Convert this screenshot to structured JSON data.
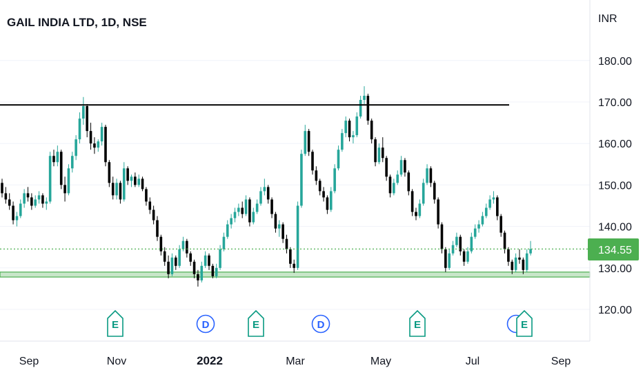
{
  "chart_data": {
    "type": "candlestick",
    "title": "GAIL INDIA LTD, 1D, NSE",
    "currency": "INR",
    "y_ticks": [
      "180.00",
      "170.00",
      "160.00",
      "150.00",
      "140.00",
      "130.00",
      "120.00"
    ],
    "y_tick_values": [
      180,
      170,
      160,
      150,
      140,
      130,
      120
    ],
    "ylim": [
      113.9,
      189.3
    ],
    "x_ticks": [
      {
        "label": "Sep",
        "bold": false
      },
      {
        "label": "Nov",
        "bold": false
      },
      {
        "label": "2022",
        "bold": true
      },
      {
        "label": "Mar",
        "bold": false
      },
      {
        "label": "May",
        "bold": false
      },
      {
        "label": "Jul",
        "bold": false
      },
      {
        "label": "Sep",
        "bold": false
      }
    ],
    "last_price": 134.55,
    "last_price_label": "134.55",
    "colors": {
      "up": "#26a69a",
      "down": "#000000",
      "accent": "#4caf50",
      "dividend": "#2962ff",
      "earnings": "#089981"
    },
    "resistance_level": 169.3,
    "support_band": [
      127.8,
      129.0
    ],
    "events": [
      {
        "type": "E",
        "label": "E"
      },
      {
        "type": "D",
        "label": "D"
      },
      {
        "type": "E",
        "label": "E"
      },
      {
        "type": "D",
        "label": "D"
      },
      {
        "type": "E",
        "label": "E"
      },
      {
        "type": "D",
        "label": ""
      },
      {
        "type": "E",
        "label": "E"
      }
    ],
    "candles": [
      [
        150.5,
        151.5,
        147.0,
        148.0
      ],
      [
        148.0,
        149.5,
        145.5,
        146.5
      ],
      [
        146.5,
        148.0,
        144.0,
        145.0
      ],
      [
        145.0,
        146.0,
        140.5,
        141.5
      ],
      [
        141.5,
        143.5,
        140.0,
        142.5
      ],
      [
        142.5,
        146.5,
        142.0,
        145.5
      ],
      [
        145.5,
        149.0,
        144.5,
        148.0
      ],
      [
        148.0,
        149.5,
        146.0,
        147.0
      ],
      [
        147.0,
        148.0,
        144.0,
        145.0
      ],
      [
        145.0,
        147.5,
        144.5,
        146.5
      ],
      [
        146.5,
        148.5,
        145.5,
        147.5
      ],
      [
        147.5,
        148.0,
        144.5,
        145.5
      ],
      [
        145.5,
        147.0,
        144.0,
        146.0
      ],
      [
        146.0,
        158.0,
        145.5,
        157.0
      ],
      [
        157.0,
        158.5,
        154.5,
        155.5
      ],
      [
        155.5,
        159.5,
        154.5,
        158.0
      ],
      [
        158.0,
        158.5,
        149.0,
        150.0
      ],
      [
        150.0,
        152.0,
        146.0,
        148.0
      ],
      [
        148.0,
        155.0,
        147.5,
        154.0
      ],
      [
        154.0,
        158.0,
        153.0,
        157.0
      ],
      [
        157.0,
        162.0,
        156.0,
        161.0
      ],
      [
        161.0,
        167.5,
        160.0,
        166.0
      ],
      [
        166.0,
        171.2,
        164.5,
        169.0
      ],
      [
        169.0,
        169.5,
        161.5,
        163.0
      ],
      [
        163.0,
        165.0,
        158.5,
        160.0
      ],
      [
        160.0,
        161.5,
        157.5,
        159.0
      ],
      [
        159.0,
        161.0,
        158.0,
        160.5
      ],
      [
        160.5,
        165.0,
        159.5,
        164.0
      ],
      [
        164.0,
        164.5,
        154.5,
        155.5
      ],
      [
        155.5,
        156.0,
        149.5,
        150.5
      ],
      [
        150.5,
        152.0,
        146.5,
        147.5
      ],
      [
        147.5,
        151.5,
        146.5,
        150.5
      ],
      [
        150.5,
        151.0,
        145.5,
        146.5
      ],
      [
        146.5,
        155.5,
        146.0,
        154.0
      ],
      [
        154.0,
        154.5,
        150.0,
        151.0
      ],
      [
        151.0,
        152.5,
        149.5,
        152.0
      ],
      [
        152.0,
        153.0,
        149.5,
        150.0
      ],
      [
        150.0,
        152.5,
        149.5,
        151.5
      ],
      [
        151.5,
        152.0,
        148.5,
        149.0
      ],
      [
        149.0,
        149.5,
        145.0,
        146.0
      ],
      [
        146.0,
        147.0,
        143.0,
        144.0
      ],
      [
        144.0,
        145.0,
        140.5,
        141.5
      ],
      [
        141.5,
        142.5,
        136.5,
        137.5
      ],
      [
        137.5,
        138.0,
        133.0,
        134.0
      ],
      [
        134.0,
        135.0,
        130.5,
        131.5
      ],
      [
        131.5,
        133.0,
        127.5,
        128.5
      ],
      [
        128.5,
        133.5,
        128.0,
        132.5
      ],
      [
        132.5,
        133.0,
        129.5,
        130.5
      ],
      [
        130.5,
        135.5,
        130.0,
        134.5
      ],
      [
        134.5,
        137.5,
        134.0,
        136.5
      ],
      [
        136.5,
        137.0,
        132.5,
        133.5
      ],
      [
        133.5,
        134.0,
        130.5,
        131.5
      ],
      [
        131.5,
        132.0,
        127.5,
        128.5
      ],
      [
        128.5,
        129.5,
        125.5,
        127.0
      ],
      [
        127.0,
        131.5,
        126.5,
        130.5
      ],
      [
        130.5,
        134.0,
        130.0,
        133.0
      ],
      [
        133.0,
        133.5,
        129.5,
        130.5
      ],
      [
        130.5,
        131.0,
        127.5,
        128.0
      ],
      [
        128.0,
        131.0,
        127.5,
        130.0
      ],
      [
        130.0,
        135.5,
        129.5,
        134.5
      ],
      [
        134.5,
        138.5,
        134.0,
        137.5
      ],
      [
        137.5,
        141.5,
        137.0,
        140.5
      ],
      [
        140.5,
        143.0,
        139.5,
        142.0
      ],
      [
        142.0,
        144.5,
        141.0,
        143.5
      ],
      [
        143.5,
        145.5,
        142.5,
        144.5
      ],
      [
        144.5,
        146.0,
        142.0,
        143.0
      ],
      [
        143.0,
        147.5,
        142.5,
        146.5
      ],
      [
        146.5,
        147.0,
        140.0,
        141.0
      ],
      [
        141.0,
        144.5,
        140.5,
        143.5
      ],
      [
        143.5,
        146.5,
        143.0,
        145.5
      ],
      [
        145.5,
        149.5,
        145.0,
        148.5
      ],
      [
        148.5,
        151.5,
        147.5,
        149.5
      ],
      [
        149.5,
        150.0,
        145.5,
        146.5
      ],
      [
        146.5,
        147.0,
        142.0,
        143.0
      ],
      [
        143.0,
        143.5,
        138.5,
        139.5
      ],
      [
        139.5,
        141.5,
        137.5,
        140.5
      ],
      [
        140.5,
        141.0,
        136.0,
        137.0
      ],
      [
        137.0,
        138.0,
        133.5,
        134.5
      ],
      [
        134.5,
        135.0,
        130.0,
        131.0
      ],
      [
        131.0,
        132.0,
        128.8,
        130.0
      ],
      [
        130.0,
        146.0,
        129.5,
        145.0
      ],
      [
        145.0,
        158.5,
        144.5,
        157.5
      ],
      [
        157.5,
        164.5,
        157.0,
        163.0
      ],
      [
        163.0,
        163.5,
        157.0,
        158.0
      ],
      [
        158.0,
        158.5,
        152.5,
        153.5
      ],
      [
        153.5,
        154.5,
        150.0,
        151.0
      ],
      [
        151.0,
        151.5,
        147.5,
        148.5
      ],
      [
        148.5,
        149.5,
        146.0,
        147.0
      ],
      [
        147.0,
        147.5,
        143.0,
        144.0
      ],
      [
        144.0,
        149.5,
        143.5,
        148.5
      ],
      [
        148.5,
        155.0,
        148.0,
        154.0
      ],
      [
        154.0,
        159.5,
        153.5,
        158.5
      ],
      [
        158.5,
        163.5,
        158.0,
        162.5
      ],
      [
        162.5,
        166.5,
        161.5,
        165.5
      ],
      [
        165.5,
        166.0,
        160.5,
        161.5
      ],
      [
        161.5,
        163.0,
        160.0,
        162.0
      ],
      [
        162.0,
        167.5,
        161.5,
        166.5
      ],
      [
        166.5,
        171.5,
        166.0,
        170.5
      ],
      [
        170.5,
        173.8,
        169.5,
        171.5
      ],
      [
        171.5,
        172.0,
        164.5,
        165.5
      ],
      [
        165.5,
        166.0,
        160.0,
        161.0
      ],
      [
        161.0,
        161.5,
        154.5,
        155.5
      ],
      [
        155.5,
        160.0,
        155.0,
        159.0
      ],
      [
        159.0,
        161.5,
        155.5,
        156.5
      ],
      [
        156.5,
        157.0,
        151.0,
        152.0
      ],
      [
        152.0,
        152.5,
        147.0,
        148.0
      ],
      [
        148.0,
        151.5,
        147.5,
        150.5
      ],
      [
        150.5,
        153.5,
        150.0,
        152.5
      ],
      [
        152.5,
        157.0,
        152.0,
        156.0
      ],
      [
        156.0,
        156.5,
        152.0,
        153.0
      ],
      [
        153.0,
        153.5,
        147.5,
        148.5
      ],
      [
        148.5,
        149.0,
        142.5,
        143.5
      ],
      [
        143.5,
        144.5,
        141.5,
        142.5
      ],
      [
        142.5,
        146.5,
        142.0,
        145.5
      ],
      [
        145.5,
        151.5,
        145.0,
        150.5
      ],
      [
        150.5,
        155.0,
        150.0,
        154.0
      ],
      [
        154.0,
        154.5,
        149.5,
        150.5
      ],
      [
        150.5,
        151.0,
        145.5,
        146.5
      ],
      [
        146.5,
        147.0,
        139.5,
        140.5
      ],
      [
        140.5,
        141.0,
        133.5,
        134.5
      ],
      [
        134.5,
        135.0,
        129.0,
        130.0
      ],
      [
        130.0,
        134.5,
        129.5,
        133.5
      ],
      [
        133.5,
        136.5,
        133.0,
        135.5
      ],
      [
        135.5,
        138.5,
        135.0,
        137.5
      ],
      [
        137.5,
        138.0,
        133.0,
        134.0
      ],
      [
        134.0,
        134.5,
        130.5,
        131.5
      ],
      [
        131.5,
        135.0,
        131.0,
        134.0
      ],
      [
        134.0,
        138.5,
        133.5,
        137.5
      ],
      [
        137.5,
        140.5,
        137.0,
        139.5
      ],
      [
        139.5,
        141.5,
        138.5,
        140.5
      ],
      [
        140.5,
        143.5,
        140.0,
        142.5
      ],
      [
        142.5,
        145.5,
        142.0,
        144.5
      ],
      [
        144.5,
        147.5,
        144.0,
        146.5
      ],
      [
        146.5,
        148.5,
        145.5,
        147.0
      ],
      [
        147.0,
        147.5,
        141.5,
        142.5
      ],
      [
        142.5,
        143.0,
        137.5,
        138.5
      ],
      [
        138.5,
        139.0,
        133.5,
        134.5
      ],
      [
        134.5,
        135.0,
        130.5,
        131.5
      ],
      [
        131.5,
        132.0,
        128.5,
        129.5
      ],
      [
        129.5,
        133.5,
        129.0,
        132.5
      ],
      [
        132.5,
        134.5,
        131.0,
        132.0
      ],
      [
        132.0,
        132.5,
        128.5,
        129.5
      ],
      [
        129.5,
        134.5,
        129.0,
        133.5
      ],
      [
        133.5,
        136.5,
        133.0,
        134.55
      ]
    ]
  }
}
